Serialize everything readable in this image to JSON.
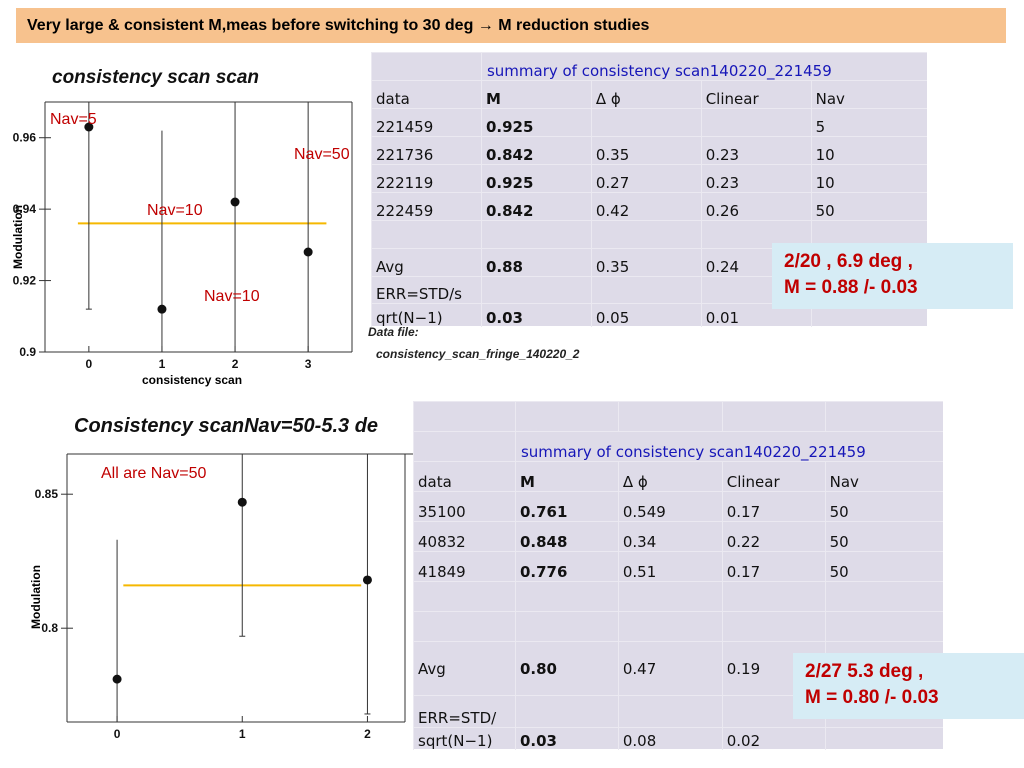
{
  "slide_title": "Very large & consistent M,meas before switching to 30 deg  →  M reduction studies",
  "chart_data": [
    {
      "type": "scatter",
      "title": "consistency scan scan",
      "xlabel": "consistency scan",
      "ylabel": "Modulation",
      "xlim": [
        -0.6,
        3.6
      ],
      "ylim": [
        0.9,
        0.97
      ],
      "xticks": [
        "0",
        "1",
        "2",
        "3"
      ],
      "yticks": [
        "0.9",
        "0.92",
        "0.94",
        "0.96"
      ],
      "points": [
        {
          "x": 0,
          "y": 0.963,
          "err_low": 0.912,
          "err_high": 0.97
        },
        {
          "x": 1,
          "y": 0.912,
          "err_low": 0.9,
          "err_high": 0.962
        },
        {
          "x": 2,
          "y": 0.942,
          "err_low": 0.9,
          "err_high": 0.97
        },
        {
          "x": 3,
          "y": 0.928,
          "err_low": 0.9,
          "err_high": 0.97
        }
      ],
      "avg_line": 0.936,
      "annotations": [
        "Nav=5",
        "Nav=50",
        "Nav=10",
        "Nav=10"
      ]
    },
    {
      "type": "scatter",
      "title": "Consistency scanNav=50-5.3 de",
      "xlabel": "",
      "ylabel": "Modulation",
      "xlim": [
        -0.4,
        2.3
      ],
      "ylim": [
        0.765,
        0.865
      ],
      "xticks": [
        "0",
        "1",
        "2"
      ],
      "yticks": [
        "0.8",
        "0.85"
      ],
      "points": [
        {
          "x": 0,
          "y": 0.781,
          "err_low": 0.765,
          "err_high": 0.833
        },
        {
          "x": 1,
          "y": 0.847,
          "err_low": 0.797,
          "err_high": 0.865
        },
        {
          "x": 2,
          "y": 0.818,
          "err_low": 0.768,
          "err_high": 0.865
        }
      ],
      "avg_line": 0.816,
      "annotations": [
        "All are  Nav=50"
      ]
    }
  ],
  "table1": {
    "title": "summary of consistency scan140220_221459",
    "headers": [
      "data",
      "M",
      "Δ ϕ",
      "Clinear",
      "Nav"
    ],
    "rows": [
      [
        "221459",
        "0.925",
        "",
        "",
        "5"
      ],
      [
        "221736",
        "0.842",
        "0.35",
        "0.23",
        "10"
      ],
      [
        "222119",
        "0.925",
        "0.27",
        "0.23",
        "10"
      ],
      [
        "222459",
        "0.842",
        "0.42",
        "0.26",
        "50"
      ]
    ],
    "avg": [
      "Avg",
      "0.88",
      "0.35",
      "0.24",
      ""
    ],
    "err_label_1": "ERR=STD/s",
    "err_label_2": "qrt(N−1)",
    "err": [
      "0.03",
      "0.05",
      "0.01",
      ""
    ]
  },
  "table2": {
    "title": "summary of consistency scan140220_221459",
    "headers": [
      "data",
      "M",
      "Δ ϕ",
      "Clinear",
      "Nav"
    ],
    "rows": [
      [
        "35100",
        "0.761",
        "0.549",
        "0.17",
        "50"
      ],
      [
        "40832",
        "0.848",
        "0.34",
        "0.22",
        "50"
      ],
      [
        "41849",
        "0.776",
        "0.51",
        "0.17",
        "50"
      ]
    ],
    "avg": [
      "Avg",
      "0.80",
      "0.47",
      "0.19",
      ""
    ],
    "err_label_1": "ERR=STD/",
    "err_label_2": "sqrt(N−1)",
    "err": [
      "0.03",
      "0.08",
      "0.02",
      ""
    ]
  },
  "summary1": {
    "line1": "2/20 ,  6.9 deg ,",
    "line2": "M = 0.88 /- 0.03"
  },
  "summary2": {
    "line1": "2/27   5.3 deg ,",
    "line2": "M = 0.80 /- 0.03"
  },
  "data_file": {
    "label": "Data file:",
    "name": "consistency_scan_fringe_140220_2"
  },
  "colors": {
    "title_bg": "#f7c28e",
    "table_bg": "#dedbe8",
    "summary_bg": "#d6ecf5",
    "accent_red": "#c00000",
    "table_title_blue": "#1616b8",
    "avg_line": "#f5b800"
  }
}
